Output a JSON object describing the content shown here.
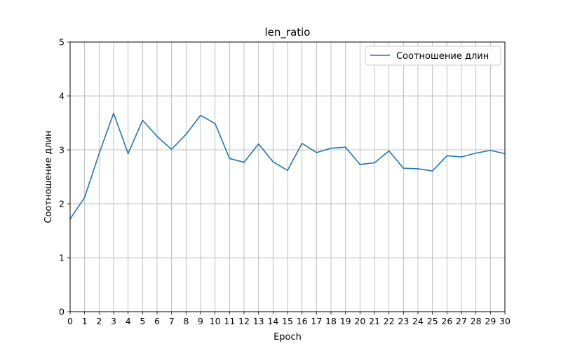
{
  "chart_data": {
    "type": "line",
    "title": "len_ratio",
    "xlabel": "Epoch",
    "ylabel": "Соотношение длин",
    "xlim": [
      0,
      30
    ],
    "ylim": [
      0,
      5
    ],
    "x_ticks": [
      0,
      1,
      2,
      3,
      4,
      5,
      6,
      7,
      8,
      9,
      10,
      11,
      12,
      13,
      14,
      15,
      16,
      17,
      18,
      19,
      20,
      21,
      22,
      23,
      24,
      25,
      26,
      27,
      28,
      29,
      30
    ],
    "y_ticks": [
      0,
      1,
      2,
      3,
      4,
      5
    ],
    "grid": true,
    "legend_position": "upper right",
    "series": [
      {
        "name": "Соотношение длин",
        "color": "#1f77b4",
        "x": [
          0,
          1,
          2,
          3,
          4,
          5,
          6,
          7,
          8,
          9,
          10,
          11,
          12,
          13,
          14,
          15,
          16,
          17,
          18,
          19,
          20,
          21,
          22,
          23,
          24,
          25,
          26,
          27,
          28,
          29,
          30
        ],
        "y": [
          1.72,
          2.12,
          2.93,
          3.68,
          2.93,
          3.55,
          3.25,
          3.01,
          3.29,
          3.64,
          3.49,
          2.84,
          2.77,
          3.11,
          2.78,
          2.62,
          3.12,
          2.95,
          3.03,
          3.05,
          2.73,
          2.76,
          2.98,
          2.66,
          2.65,
          2.61,
          2.89,
          2.87,
          2.94,
          2.99,
          2.93
        ]
      }
    ]
  }
}
